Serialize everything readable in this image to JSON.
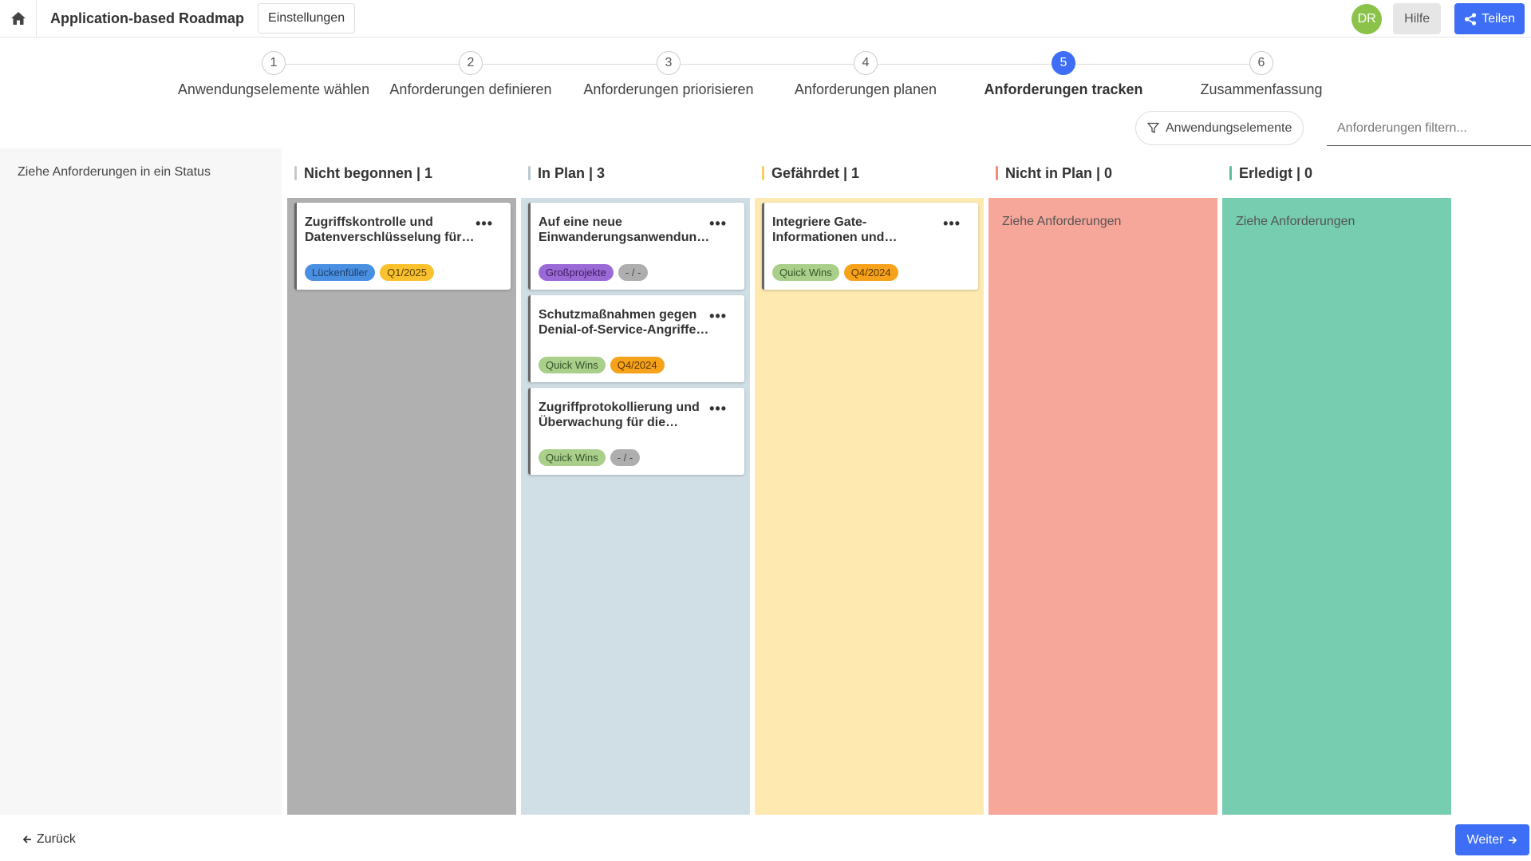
{
  "header": {
    "title": "Application-based Roadmap",
    "settings_label": "Einstellungen",
    "avatar_initials": "DR",
    "help_label": "Hilfe",
    "share_label": "Teilen"
  },
  "stepper": {
    "steps": [
      {
        "num": "1",
        "label": "Anwendungselemente wählen"
      },
      {
        "num": "2",
        "label": "Anforderungen definieren"
      },
      {
        "num": "3",
        "label": "Anforderungen priorisieren"
      },
      {
        "num": "4",
        "label": "Anforderungen planen"
      },
      {
        "num": "5",
        "label": "Anforderungen tracken",
        "active": true
      },
      {
        "num": "6",
        "label": "Zusammenfassung"
      }
    ]
  },
  "filters": {
    "elements_label": "Anwendungselemente",
    "search_placeholder": "Anforderungen filtern..."
  },
  "left_panel": {
    "hint": "Ziehe Anforderungen in ein Status"
  },
  "board": {
    "columns": [
      {
        "title": "Nicht begonnen | 1",
        "color": "#b0b0b0",
        "bar": "#c8c8c8",
        "cards": [
          {
            "title": "Zugriffskontrolle und Datenverschlüsselung für Patientendaten",
            "tags": [
              {
                "label": "Lückenfüller",
                "bg": "#4a90e2",
                "fg": "#1f3d66"
              },
              {
                "label": "Q1/2025",
                "bg": "#f9c12e",
                "fg": "#5a4300"
              }
            ]
          }
        ]
      },
      {
        "title": "In Plan | 3",
        "color": "#d0dee5",
        "bar": "#b9c9d2",
        "cards": [
          {
            "title": "Auf eine neue Einwanderungsanwendung migrieren",
            "tags": [
              {
                "label": "Großprojekte",
                "bg": "#9c6ad6",
                "fg": "#3a1d5e"
              },
              {
                "label": "- / -",
                "bg": "#aeaeae",
                "fg": "#444"
              }
            ]
          },
          {
            "title": "Schutzmaßnahmen gegen Denial-of-Service-Angriffe implementieren",
            "tags": [
              {
                "label": "Quick Wins",
                "bg": "#a9cf8a",
                "fg": "#35532a"
              },
              {
                "label": "Q4/2024",
                "bg": "#f7a21b",
                "fg": "#5a3700"
              }
            ]
          },
          {
            "title": "Zugriffprotokollierung und Überwachung für die Anwendung",
            "tags": [
              {
                "label": "Quick Wins",
                "bg": "#a9cf8a",
                "fg": "#35532a"
              },
              {
                "label": "- / -",
                "bg": "#aeaeae",
                "fg": "#444"
              }
            ]
          }
        ]
      },
      {
        "title": "Gefährdet | 1",
        "color": "#feeab1",
        "bar": "#f5cf6a",
        "cards": [
          {
            "title": "Integriere Gate-Informationen und Flugpläne",
            "tags": [
              {
                "label": "Quick Wins",
                "bg": "#a9cf8a",
                "fg": "#35532a"
              },
              {
                "label": "Q4/2024",
                "bg": "#f7a21b",
                "fg": "#5a3700"
              }
            ]
          }
        ]
      },
      {
        "title": "Nicht in Plan | 0",
        "color": "#f7a69a",
        "bar": "#f08a7a",
        "drop_hint": "Ziehe Anforderungen",
        "cards": []
      },
      {
        "title": "Erledigt | 0",
        "color": "#77cdaf",
        "bar": "#5cbf9b",
        "drop_hint": "Ziehe Anforderungen",
        "cards": []
      }
    ]
  },
  "footer": {
    "back_label": "Zurück",
    "next_label": "Weiter"
  }
}
